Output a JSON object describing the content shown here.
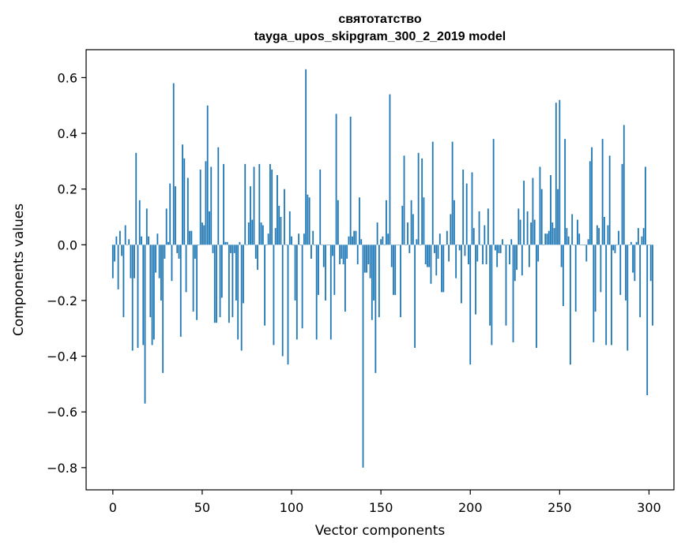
{
  "chart_data": {
    "type": "bar",
    "title": "святотатство",
    "subtitle": "tayga_upos_skipgram_300_2_2019 model",
    "xlabel": "Vector components",
    "ylabel": "Components values",
    "xlim": [
      -14.95,
      313.95
    ],
    "ylim": [
      -0.8797,
      0.7003
    ],
    "xticks": [
      0,
      50,
      100,
      150,
      200,
      250,
      300
    ],
    "xtick_labels": [
      "0",
      "50",
      "100",
      "150",
      "200",
      "250",
      "300"
    ],
    "yticks": [
      -0.8,
      -0.6,
      -0.4,
      -0.2,
      0.0,
      0.2,
      0.4,
      0.6
    ],
    "ytick_labels": [
      "−0.8",
      "−0.6",
      "−0.4",
      "−0.2",
      "0.0",
      "0.2",
      "0.4",
      "0.6"
    ],
    "bar_color": "#1f77b4",
    "values": [
      -0.12,
      -0.06,
      0.03,
      -0.16,
      0.05,
      -0.04,
      -0.26,
      0.07,
      0.0,
      0.02,
      -0.12,
      -0.38,
      -0.12,
      0.33,
      -0.37,
      0.16,
      0.03,
      -0.36,
      -0.57,
      0.13,
      0.03,
      -0.26,
      -0.36,
      -0.34,
      -0.1,
      0.04,
      -0.12,
      -0.2,
      -0.46,
      -0.05,
      0.13,
      0.01,
      0.22,
      -0.13,
      0.58,
      0.21,
      -0.03,
      -0.05,
      -0.33,
      0.36,
      0.31,
      -0.17,
      0.24,
      0.05,
      0.05,
      -0.24,
      -0.05,
      -0.27,
      0.0,
      0.27,
      0.08,
      0.07,
      0.3,
      0.5,
      0.12,
      0.28,
      -0.03,
      -0.28,
      -0.28,
      0.35,
      -0.26,
      -0.19,
      0.29,
      0.01,
      0.01,
      -0.28,
      -0.03,
      -0.26,
      -0.03,
      -0.2,
      -0.34,
      0.01,
      -0.38,
      -0.21,
      0.29,
      0.0,
      0.08,
      0.21,
      0.09,
      0.28,
      -0.05,
      -0.09,
      0.29,
      0.08,
      0.07,
      -0.29,
      0.0,
      0.04,
      0.29,
      0.27,
      -0.36,
      0.06,
      0.25,
      0.14,
      0.1,
      -0.4,
      0.2,
      0.0,
      -0.43,
      0.12,
      0.03,
      0.0,
      -0.2,
      -0.34,
      0.04,
      0.0,
      -0.3,
      0.04,
      0.63,
      0.18,
      0.17,
      -0.05,
      0.05,
      0.0,
      -0.34,
      -0.18,
      0.27,
      0.0,
      -0.08,
      -0.2,
      0.0,
      0.0,
      -0.34,
      -0.04,
      -0.18,
      0.47,
      0.16,
      -0.07,
      -0.05,
      -0.07,
      -0.24,
      -0.05,
      0.03,
      0.46,
      0.03,
      0.05,
      0.05,
      -0.07,
      0.17,
      0.02,
      -0.8,
      -0.1,
      -0.1,
      -0.07,
      -0.12,
      -0.27,
      -0.2,
      -0.46,
      0.08,
      -0.26,
      0.02,
      0.03,
      0.0,
      0.16,
      0.04,
      0.54,
      -0.08,
      -0.18,
      -0.18,
      0.0,
      0.0,
      -0.26,
      0.14,
      0.32,
      0.0,
      0.08,
      -0.03,
      0.16,
      0.11,
      -0.37,
      0.02,
      0.33,
      0.0,
      0.31,
      0.17,
      -0.07,
      -0.08,
      -0.08,
      -0.14,
      0.37,
      -0.03,
      -0.11,
      -0.05,
      0.04,
      -0.17,
      -0.17,
      0.0,
      0.05,
      -0.06,
      0.11,
      0.37,
      0.16,
      -0.12,
      0.0,
      -0.02,
      -0.21,
      0.27,
      -0.04,
      0.22,
      -0.07,
      -0.43,
      0.26,
      0.06,
      -0.25,
      -0.06,
      0.12,
      0.0,
      -0.07,
      0.07,
      -0.07,
      0.13,
      -0.29,
      -0.36,
      0.38,
      -0.02,
      -0.08,
      -0.03,
      -0.03,
      0.02,
      0.0,
      -0.29,
      0.0,
      -0.07,
      0.02,
      -0.35,
      -0.13,
      -0.09,
      0.13,
      0.09,
      -0.11,
      0.23,
      0.0,
      0.12,
      -0.08,
      0.08,
      0.24,
      0.09,
      -0.37,
      -0.06,
      0.28,
      0.2,
      0.0,
      0.04,
      0.04,
      0.05,
      0.25,
      0.08,
      0.06,
      0.51,
      0.2,
      0.52,
      -0.08,
      -0.22,
      0.38,
      0.06,
      0.03,
      -0.43,
      0.11,
      0.0,
      -0.24,
      0.09,
      0.04,
      0.0,
      0.0,
      0.0,
      -0.06,
      0.02,
      0.3,
      0.35,
      -0.35,
      -0.24,
      0.07,
      0.06,
      -0.17,
      0.38,
      0.1,
      -0.36,
      0.07,
      0.32,
      -0.36,
      -0.02,
      -0.03,
      0.0,
      0.05,
      -0.18,
      0.29,
      0.43,
      -0.2,
      -0.38,
      0.0,
      0.01,
      -0.1,
      -0.13,
      0.01,
      0.06,
      -0.26,
      0.03,
      0.06,
      0.28,
      -0.54,
      0.0,
      -0.13,
      -0.29
    ]
  }
}
